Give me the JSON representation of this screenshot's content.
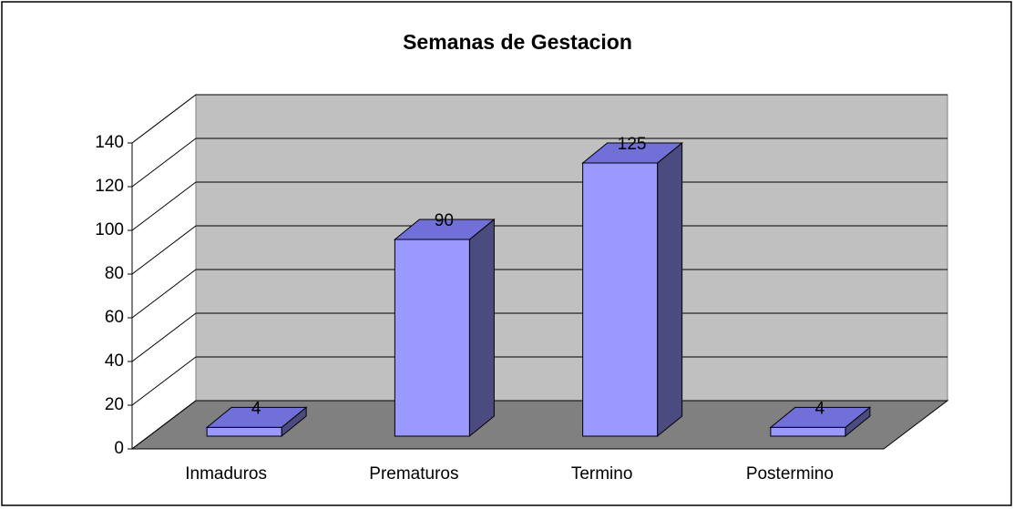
{
  "chart_data": {
    "type": "bar3d",
    "title": "Semanas de Gestacion",
    "categories": [
      "Inmaduros",
      "Prematuros",
      "Termino",
      "Postermino"
    ],
    "values": [
      4,
      90,
      125,
      4
    ],
    "color": "#9999ff",
    "ylim": [
      0,
      140
    ],
    "yticks": [
      0,
      20,
      40,
      60,
      80,
      100,
      120,
      140
    ],
    "grid": true
  }
}
